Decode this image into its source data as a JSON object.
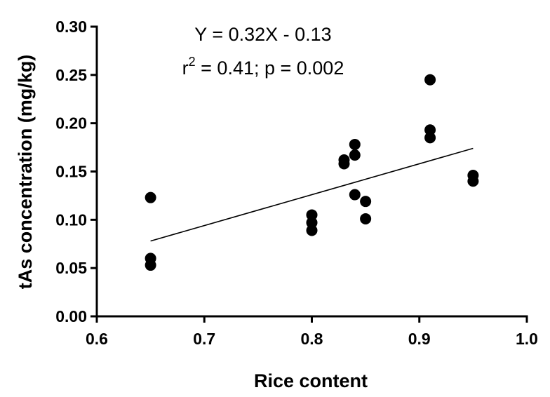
{
  "chart_data": {
    "type": "scatter",
    "xlabel": "Rice content",
    "ylabel": "tAs concentration (mg/kg)",
    "xlim": [
      0.6,
      1.0
    ],
    "ylim": [
      0.0,
      0.3
    ],
    "x_ticks": [
      "0.6",
      "0.7",
      "0.8",
      "0.9",
      "1.0"
    ],
    "y_ticks": [
      "0.00",
      "0.05",
      "0.10",
      "0.15",
      "0.20",
      "0.25",
      "0.30"
    ],
    "grid": false,
    "points": [
      {
        "x": 0.65,
        "y": 0.123
      },
      {
        "x": 0.65,
        "y": 0.06
      },
      {
        "x": 0.65,
        "y": 0.053
      },
      {
        "x": 0.8,
        "y": 0.105
      },
      {
        "x": 0.8,
        "y": 0.097
      },
      {
        "x": 0.8,
        "y": 0.089
      },
      {
        "x": 0.83,
        "y": 0.162
      },
      {
        "x": 0.83,
        "y": 0.158
      },
      {
        "x": 0.84,
        "y": 0.178
      },
      {
        "x": 0.84,
        "y": 0.167
      },
      {
        "x": 0.84,
        "y": 0.126
      },
      {
        "x": 0.85,
        "y": 0.119
      },
      {
        "x": 0.85,
        "y": 0.101
      },
      {
        "x": 0.91,
        "y": 0.245
      },
      {
        "x": 0.91,
        "y": 0.193
      },
      {
        "x": 0.91,
        "y": 0.185
      },
      {
        "x": 0.95,
        "y": 0.146
      },
      {
        "x": 0.95,
        "y": 0.14
      }
    ],
    "regression_line": {
      "x_start": 0.65,
      "x_end": 0.95,
      "slope": 0.32,
      "intercept": -0.13
    },
    "annotations": {
      "equation": "Y = 0.32X - 0.13",
      "r_prefix": "r",
      "r_exp": "2",
      "r_rest": " = 0.41; p = 0.002"
    }
  }
}
